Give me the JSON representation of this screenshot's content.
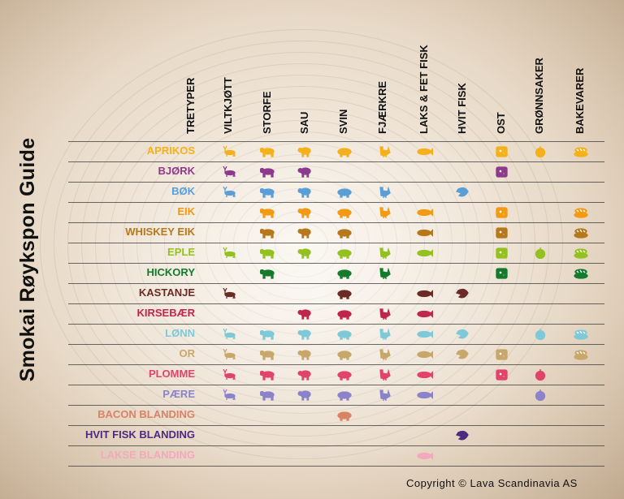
{
  "title": "Smokai Røykspon Guide",
  "columns": [
    "TRETYPER",
    "VILTKJØTT",
    "STORFE",
    "SAU",
    "SVIN",
    "FJÆRKRE",
    "LAKS & FET FISK",
    "HVIT FISK",
    "OST",
    "GRØNNSAKER",
    "BAKEVARER"
  ],
  "icon_names": [
    "deer-icon",
    "cow-icon",
    "sheep-icon",
    "pig-icon",
    "chicken-icon",
    "salmon-icon",
    "whitefish-icon",
    "cheese-icon",
    "vegetable-icon",
    "bread-icon"
  ],
  "rows": [
    {
      "name": "APRIKOS",
      "color": "#f5b01a",
      "marks": [
        1,
        1,
        1,
        1,
        1,
        1,
        0,
        1,
        1,
        1
      ]
    },
    {
      "name": "BJØRK",
      "color": "#8e3a8c",
      "marks": [
        1,
        1,
        1,
        0,
        0,
        0,
        0,
        1,
        0,
        0
      ]
    },
    {
      "name": "BØK",
      "color": "#5a9ed7",
      "marks": [
        1,
        1,
        1,
        1,
        1,
        0,
        1,
        0,
        0,
        0
      ]
    },
    {
      "name": "EIK",
      "color": "#f29a13",
      "marks": [
        0,
        1,
        1,
        1,
        1,
        1,
        0,
        1,
        0,
        1
      ]
    },
    {
      "name": "WHISKEY EIK",
      "color": "#b7781c",
      "marks": [
        0,
        1,
        1,
        1,
        0,
        1,
        0,
        1,
        0,
        1
      ]
    },
    {
      "name": "EPLE",
      "color": "#93c11f",
      "marks": [
        1,
        1,
        1,
        1,
        1,
        1,
        0,
        1,
        1,
        1
      ]
    },
    {
      "name": "HICKORY",
      "color": "#147a2c",
      "marks": [
        0,
        1,
        0,
        1,
        1,
        0,
        0,
        1,
        0,
        1
      ]
    },
    {
      "name": "KASTANJE",
      "color": "#6b2a26",
      "marks": [
        1,
        0,
        0,
        1,
        0,
        1,
        1,
        0,
        0,
        0
      ]
    },
    {
      "name": "KIRSEBÆR",
      "color": "#c0264b",
      "marks": [
        0,
        0,
        1,
        1,
        1,
        1,
        0,
        0,
        0,
        0
      ]
    },
    {
      "name": "LØNN",
      "color": "#7ec9d7",
      "marks": [
        1,
        1,
        1,
        1,
        1,
        1,
        1,
        0,
        1,
        1
      ]
    },
    {
      "name": "OR",
      "color": "#c8a76b",
      "marks": [
        1,
        1,
        1,
        1,
        1,
        1,
        1,
        1,
        0,
        1
      ]
    },
    {
      "name": "PLOMME",
      "color": "#e0446b",
      "marks": [
        1,
        1,
        1,
        1,
        1,
        1,
        0,
        1,
        1,
        0
      ]
    },
    {
      "name": "PÆRE",
      "color": "#8b83c9",
      "marks": [
        1,
        1,
        1,
        1,
        1,
        1,
        0,
        0,
        1,
        0
      ]
    },
    {
      "name": "BACON BLANDING",
      "color": "#d98266",
      "marks": [
        0,
        0,
        0,
        1,
        0,
        0,
        0,
        0,
        0,
        0
      ]
    },
    {
      "name": "HVIT FISK BLANDING",
      "color": "#4e2a82",
      "marks": [
        0,
        0,
        0,
        0,
        0,
        0,
        1,
        0,
        0,
        0
      ]
    },
    {
      "name": "LAKSE BLANDING",
      "color": "#f2a9bd",
      "marks": [
        0,
        0,
        0,
        0,
        0,
        1,
        0,
        0,
        0,
        0
      ]
    }
  ],
  "copyright": "Copyright © Lava Scandinavia AS"
}
